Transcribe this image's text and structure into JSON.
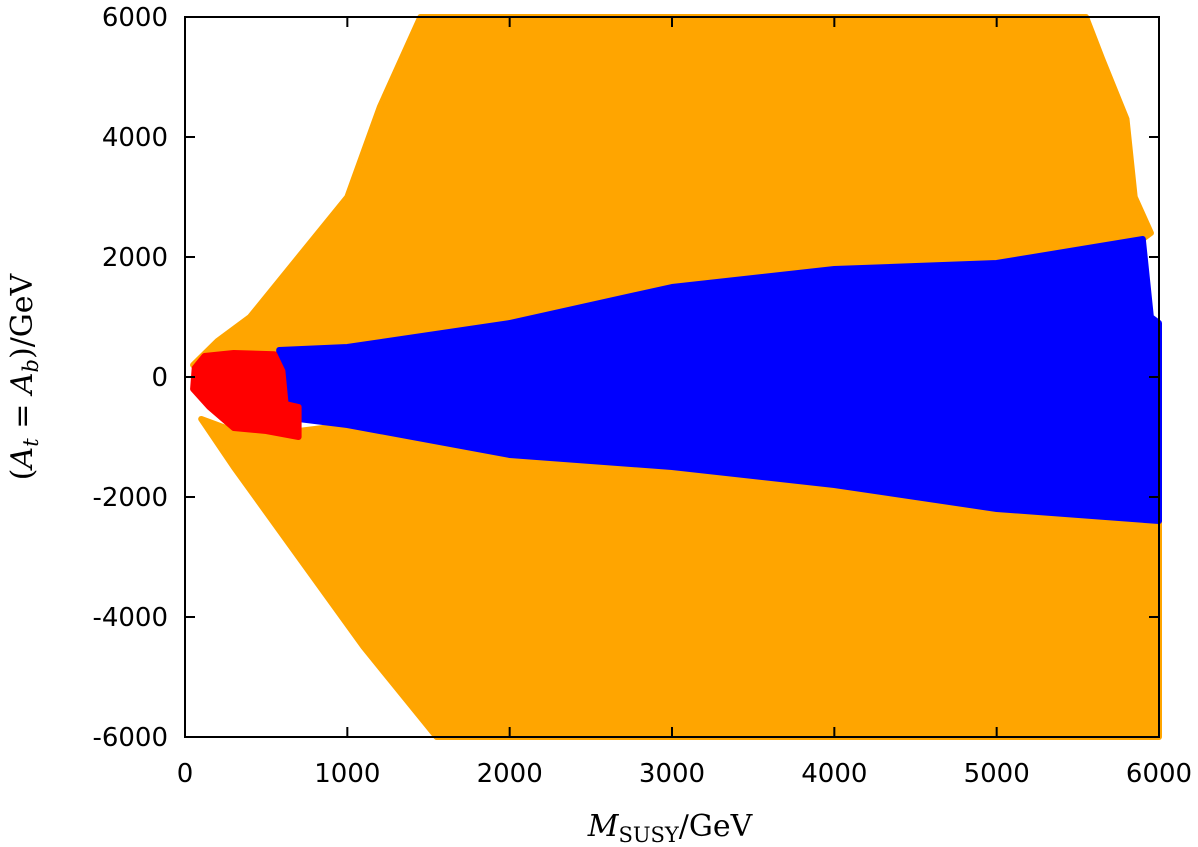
{
  "chart_data": {
    "type": "scatter",
    "title": "",
    "xlabel": {
      "main": "M",
      "sub": "SUSY",
      "tail": "/GeV"
    },
    "ylabel": {
      "open": "(",
      "a1": "A",
      "s1": "t",
      "eq": " = ",
      "a2": "A",
      "s2": "b",
      "tail": ")/GeV"
    },
    "xlim": [
      0,
      6000
    ],
    "ylim": [
      -6000,
      6000
    ],
    "xticks": [
      "0",
      "1000",
      "2000",
      "3000",
      "4000",
      "5000",
      "6000"
    ],
    "xtick_values": [
      0,
      1000,
      2000,
      3000,
      4000,
      5000,
      6000
    ],
    "yticks": [
      "-6000",
      "-4000",
      "-2000",
      "0",
      "2000",
      "4000",
      "6000"
    ],
    "ytick_values": [
      -6000,
      -4000,
      -2000,
      0,
      2000,
      4000,
      6000
    ],
    "grid": false,
    "legend": "none",
    "series": [
      {
        "color": "#ffa500",
        "region": [
          [
            1450,
            6000
          ],
          [
            5550,
            6000
          ],
          [
            5650,
            5300
          ],
          [
            5800,
            4300
          ],
          [
            5850,
            3000
          ],
          [
            5950,
            2400
          ],
          [
            5900,
            2300
          ],
          [
            5000,
            1900
          ],
          [
            4000,
            1800
          ],
          [
            3000,
            1500
          ],
          [
            2000,
            900
          ],
          [
            1000,
            500
          ],
          [
            600,
            400
          ],
          [
            200,
            300
          ],
          [
            50,
            200
          ],
          [
            200,
            600
          ],
          [
            400,
            1000
          ],
          [
            700,
            2000
          ],
          [
            1000,
            3000
          ],
          [
            1200,
            4500
          ],
          [
            1450,
            6000
          ]
        ]
      },
      {
        "color": "#ffa500",
        "region": [
          [
            1550,
            -6000
          ],
          [
            6000,
            -6000
          ],
          [
            6000,
            -2400
          ],
          [
            5000,
            -2200
          ],
          [
            4000,
            -1800
          ],
          [
            3000,
            -1500
          ],
          [
            2000,
            -1300
          ],
          [
            1000,
            -800
          ],
          [
            700,
            -900
          ],
          [
            300,
            -900
          ],
          [
            100,
            -700
          ],
          [
            300,
            -1500
          ],
          [
            700,
            -3000
          ],
          [
            1100,
            -4500
          ],
          [
            1550,
            -6000
          ]
        ]
      },
      {
        "color": "#0000ff",
        "region": [
          [
            580,
            450
          ],
          [
            1000,
            500
          ],
          [
            2000,
            900
          ],
          [
            3000,
            1500
          ],
          [
            4000,
            1800
          ],
          [
            5000,
            1900
          ],
          [
            5900,
            2300
          ],
          [
            5950,
            1000
          ],
          [
            6000,
            900
          ],
          [
            6000,
            -2400
          ],
          [
            5000,
            -2200
          ],
          [
            4000,
            -1800
          ],
          [
            3000,
            -1500
          ],
          [
            2000,
            -1300
          ],
          [
            1000,
            -800
          ],
          [
            700,
            -700
          ],
          [
            650,
            -550
          ],
          [
            580,
            -450
          ],
          [
            580,
            450
          ]
        ]
      },
      {
        "color": "#ff0000",
        "region": [
          [
            120,
            350
          ],
          [
            300,
            400
          ],
          [
            550,
            380
          ],
          [
            600,
            100
          ],
          [
            620,
            -450
          ],
          [
            700,
            -500
          ],
          [
            700,
            -1000
          ],
          [
            500,
            -900
          ],
          [
            300,
            -850
          ],
          [
            150,
            -500
          ],
          [
            50,
            -200
          ],
          [
            60,
            150
          ],
          [
            120,
            350
          ]
        ]
      }
    ]
  }
}
